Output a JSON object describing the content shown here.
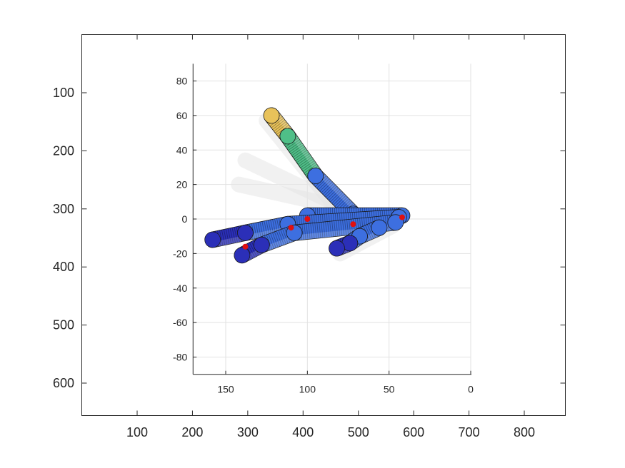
{
  "chart_data": [
    {
      "type": "image-axes",
      "xlim": [
        0,
        875
      ],
      "ylim": [
        656,
        0
      ],
      "x_ticks": [
        100,
        200,
        300,
        400,
        500,
        600,
        700,
        800
      ],
      "y_ticks": [
        100,
        200,
        300,
        400,
        500,
        600
      ],
      "box": true,
      "grid": false
    },
    {
      "type": "3d-render",
      "description_of_marks": "rendered robot hand segments (cylinders with spherical joints) with faded ghost copies",
      "xlim": [
        0,
        170
      ],
      "x_reversed": true,
      "ylim": [
        -90,
        90
      ],
      "x_ticks": [
        150,
        100,
        50,
        0
      ],
      "y_ticks": [
        80,
        60,
        40,
        20,
        0,
        -20,
        -40,
        -60,
        -80
      ],
      "grid": true,
      "colors": {
        "segment_blue": "#3d6fe0",
        "segment_dark_blue": "#2b2fb8",
        "segment_teal": "#3aa6a0",
        "segment_green": "#4fbf88",
        "segment_yellow": "#e8c25a",
        "joint_red": "#e01010",
        "ghost": "#e6e6e6"
      },
      "segments": [
        {
          "name": "thumb-tip",
          "x0": 122,
          "y0": 60,
          "x1": 112,
          "y1": 48,
          "color": "segment_yellow"
        },
        {
          "name": "thumb-mid",
          "x0": 112,
          "y0": 48,
          "x1": 95,
          "y1": 25,
          "color": "segment_green"
        },
        {
          "name": "thumb-base",
          "x0": 95,
          "y0": 25,
          "x1": 72,
          "y1": 3,
          "color": "segment_blue"
        },
        {
          "name": "palm-upper",
          "x0": 42,
          "y0": 2,
          "x1": 100,
          "y1": 2,
          "color": "segment_blue"
        },
        {
          "name": "finger-1-base",
          "x0": 44,
          "y0": 1,
          "x1": 112,
          "y1": -3,
          "color": "segment_blue"
        },
        {
          "name": "finger-1-mid",
          "x0": 112,
          "y0": -3,
          "x1": 138,
          "y1": -8,
          "color": "segment_blue"
        },
        {
          "name": "finger-1-tip",
          "x0": 138,
          "y0": -8,
          "x1": 158,
          "y1": -12,
          "color": "segment_dark_blue"
        },
        {
          "name": "finger-2-base",
          "x0": 46,
          "y0": -2,
          "x1": 108,
          "y1": -8,
          "color": "segment_blue"
        },
        {
          "name": "finger-2-mid",
          "x0": 108,
          "y0": -8,
          "x1": 128,
          "y1": -15,
          "color": "segment_blue"
        },
        {
          "name": "finger-2-tip",
          "x0": 128,
          "y0": -15,
          "x1": 140,
          "y1": -21,
          "color": "segment_dark_blue"
        },
        {
          "name": "finger-3-base",
          "x0": 56,
          "y0": -5,
          "x1": 68,
          "y1": -10,
          "color": "segment_blue"
        },
        {
          "name": "finger-3-mid",
          "x0": 68,
          "y0": -10,
          "x1": 74,
          "y1": -14,
          "color": "segment_blue"
        },
        {
          "name": "finger-3-tip",
          "x0": 74,
          "y0": -14,
          "x1": 82,
          "y1": -17,
          "color": "segment_dark_blue"
        }
      ],
      "ghosts": [
        {
          "x0": 125,
          "y0": 57,
          "x1": 85,
          "y1": 10
        },
        {
          "x0": 138,
          "y0": 34,
          "x1": 85,
          "y1": 10
        },
        {
          "x0": 142,
          "y0": 20,
          "x1": 85,
          "y1": 8
        },
        {
          "x0": 48,
          "y0": -4,
          "x1": 80,
          "y1": -20
        }
      ],
      "joints": [
        {
          "x": 42,
          "y": 1
        },
        {
          "x": 72,
          "y": -3
        },
        {
          "x": 100,
          "y": 0
        },
        {
          "x": 138,
          "y": -16
        },
        {
          "x": 110,
          "y": -5
        }
      ]
    }
  ]
}
